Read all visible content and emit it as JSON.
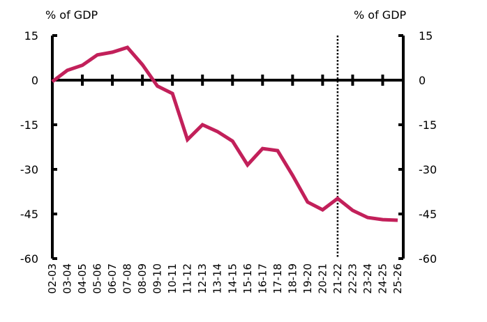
{
  "chart_data": {
    "type": "line",
    "title": "",
    "left_unit_label": "% of GDP",
    "right_unit_label": "% of GDP",
    "xlabel": "",
    "ylabel": "% of GDP",
    "ylim": [
      -60,
      15
    ],
    "yticks": [
      15,
      0,
      -15,
      -30,
      -45,
      -60
    ],
    "ytick_labels": [
      "15",
      "0",
      "-15",
      "-30",
      "-45",
      "-60"
    ],
    "grid": false,
    "legend": "none",
    "categories": [
      "02-03",
      "03-04",
      "04-05",
      "05-06",
      "06-07",
      "07-08",
      "08-09",
      "09-10",
      "10-11",
      "11-12",
      "12-13",
      "13-14",
      "14-15",
      "15-16",
      "16-17",
      "17-18",
      "18-19",
      "19-20",
      "20-21",
      "21-22",
      "22-23",
      "23-24",
      "24-25",
      "25-26"
    ],
    "series": [
      {
        "name": "% of GDP",
        "color": "#C2205A",
        "values": [
          -0.5,
          3.3,
          5.0,
          8.5,
          9.4,
          11.0,
          5.2,
          -2.0,
          -4.5,
          -20.0,
          -15.0,
          -17.3,
          -20.5,
          -28.5,
          -23.0,
          -23.7,
          -32.0,
          -41.0,
          -43.6,
          -39.8,
          -43.8,
          -46.2,
          -46.9,
          -47.1
        ]
      }
    ],
    "annotations": [
      {
        "type": "vertical-dotted-line",
        "at_category": "21-22",
        "meaning": "forecast start"
      }
    ]
  }
}
